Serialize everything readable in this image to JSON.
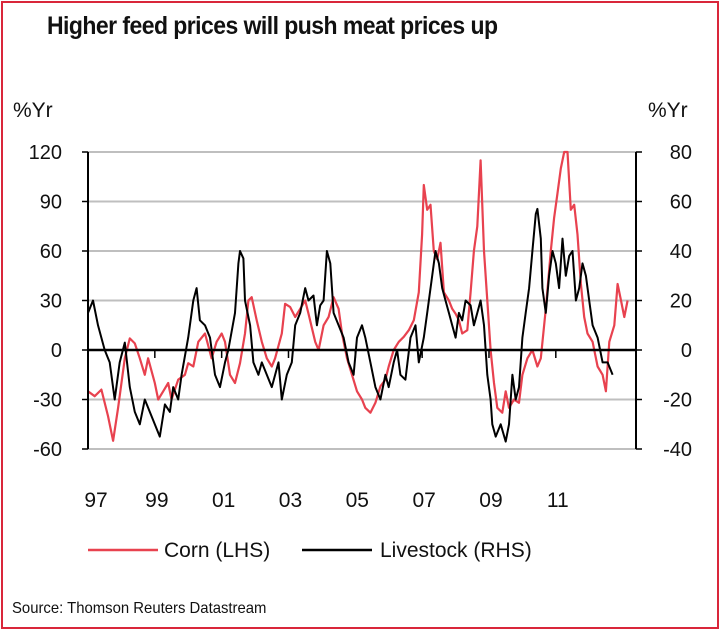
{
  "title": "Higher feed prices will push meat prices up",
  "source": "Source: Thomson Reuters Datastream",
  "colors": {
    "corn": "#e8424f",
    "livestock": "#000000",
    "frame": "#d9263a",
    "grid": "#bfbfbf"
  },
  "chart_data": {
    "type": "line",
    "title": "Higher feed prices will push meat prices up",
    "left_axis": {
      "unit": "%Yr",
      "ylim": [
        -60,
        120
      ],
      "ticks": [
        -60,
        -30,
        0,
        30,
        60,
        90,
        120
      ],
      "tick_labels": [
        "-60",
        "-30",
        "0",
        "30",
        "60",
        "90",
        "120"
      ]
    },
    "right_axis": {
      "unit": "%Yr",
      "ylim": [
        -40,
        80
      ],
      "ticks": [
        -40,
        -20,
        0,
        20,
        40,
        60,
        80
      ],
      "tick_labels": [
        "-40",
        "-20",
        "0",
        "20",
        "40",
        "60",
        "80"
      ]
    },
    "x_axis": {
      "xlim": [
        1997,
        2013.4
      ],
      "ticks": [
        1997,
        1999,
        2001,
        2003,
        2005,
        2007,
        2009,
        2011
      ],
      "tick_labels": [
        "97",
        "99",
        "01",
        "03",
        "05",
        "07",
        "09",
        "11"
      ]
    },
    "grid": true,
    "legend": {
      "placement": "bottom"
    },
    "series": [
      {
        "name": "Corn (LHS)",
        "axis": "left",
        "color": "#e8424f",
        "points": [
          [
            1997.0,
            -25
          ],
          [
            1997.2,
            -28
          ],
          [
            1997.4,
            -24
          ],
          [
            1997.6,
            -40
          ],
          [
            1997.75,
            -55
          ],
          [
            1997.9,
            -35
          ],
          [
            1998.1,
            -5
          ],
          [
            1998.25,
            7
          ],
          [
            1998.4,
            4
          ],
          [
            1998.55,
            -5
          ],
          [
            1998.7,
            -15
          ],
          [
            1998.8,
            -5
          ],
          [
            1999.0,
            -20
          ],
          [
            1999.1,
            -30
          ],
          [
            1999.25,
            -25
          ],
          [
            1999.4,
            -20
          ],
          [
            1999.5,
            -30
          ],
          [
            1999.7,
            -18
          ],
          [
            1999.9,
            -15
          ],
          [
            2000.0,
            -8
          ],
          [
            2000.15,
            -10
          ],
          [
            2000.3,
            5
          ],
          [
            2000.5,
            10
          ],
          [
            2000.7,
            -5
          ],
          [
            2000.85,
            5
          ],
          [
            2001.0,
            10
          ],
          [
            2001.1,
            5
          ],
          [
            2001.25,
            -15
          ],
          [
            2001.4,
            -20
          ],
          [
            2001.55,
            -8
          ],
          [
            2001.7,
            10
          ],
          [
            2001.8,
            30
          ],
          [
            2001.9,
            32
          ],
          [
            2002.05,
            18
          ],
          [
            2002.2,
            5
          ],
          [
            2002.35,
            -5
          ],
          [
            2002.5,
            -10
          ],
          [
            2002.6,
            -5
          ],
          [
            2002.8,
            10
          ],
          [
            2002.9,
            28
          ],
          [
            2003.05,
            26
          ],
          [
            2003.2,
            20
          ],
          [
            2003.35,
            25
          ],
          [
            2003.5,
            30
          ],
          [
            2003.6,
            22
          ],
          [
            2003.8,
            5
          ],
          [
            2003.9,
            0
          ],
          [
            2004.05,
            15
          ],
          [
            2004.2,
            20
          ],
          [
            2004.35,
            32
          ],
          [
            2004.5,
            25
          ],
          [
            2004.6,
            10
          ],
          [
            2004.75,
            -5
          ],
          [
            2004.9,
            -15
          ],
          [
            2005.05,
            -25
          ],
          [
            2005.2,
            -30
          ],
          [
            2005.3,
            -35
          ],
          [
            2005.45,
            -38
          ],
          [
            2005.6,
            -32
          ],
          [
            2005.75,
            -22
          ],
          [
            2005.9,
            -18
          ],
          [
            2006.0,
            -10
          ],
          [
            2006.15,
            0
          ],
          [
            2006.3,
            5
          ],
          [
            2006.45,
            8
          ],
          [
            2006.6,
            12
          ],
          [
            2006.75,
            18
          ],
          [
            2006.9,
            35
          ],
          [
            2007.0,
            70
          ],
          [
            2007.05,
            100
          ],
          [
            2007.15,
            85
          ],
          [
            2007.25,
            88
          ],
          [
            2007.35,
            60
          ],
          [
            2007.45,
            55
          ],
          [
            2007.55,
            65
          ],
          [
            2007.65,
            35
          ],
          [
            2007.8,
            30
          ],
          [
            2007.9,
            25
          ],
          [
            2008.0,
            22
          ],
          [
            2008.1,
            18
          ],
          [
            2008.2,
            10
          ],
          [
            2008.35,
            12
          ],
          [
            2008.45,
            35
          ],
          [
            2008.55,
            60
          ],
          [
            2008.65,
            75
          ],
          [
            2008.75,
            115
          ],
          [
            2008.85,
            60
          ],
          [
            2008.95,
            30
          ],
          [
            2009.05,
            0
          ],
          [
            2009.15,
            -20
          ],
          [
            2009.25,
            -35
          ],
          [
            2009.4,
            -38
          ],
          [
            2009.5,
            -25
          ],
          [
            2009.6,
            -35
          ],
          [
            2009.75,
            -30
          ],
          [
            2009.9,
            -32
          ],
          [
            2010.0,
            -15
          ],
          [
            2010.15,
            -5
          ],
          [
            2010.3,
            0
          ],
          [
            2010.45,
            -10
          ],
          [
            2010.55,
            -5
          ],
          [
            2010.7,
            25
          ],
          [
            2010.85,
            60
          ],
          [
            2010.95,
            80
          ],
          [
            2011.05,
            95
          ],
          [
            2011.15,
            110
          ],
          [
            2011.25,
            123
          ],
          [
            2011.35,
            120
          ],
          [
            2011.45,
            85
          ],
          [
            2011.55,
            88
          ],
          [
            2011.65,
            70
          ],
          [
            2011.75,
            40
          ],
          [
            2011.85,
            20
          ],
          [
            2011.95,
            10
          ],
          [
            2012.1,
            5
          ],
          [
            2012.25,
            -10
          ],
          [
            2012.4,
            -15
          ],
          [
            2012.5,
            -25
          ],
          [
            2012.6,
            5
          ],
          [
            2012.75,
            15
          ],
          [
            2012.85,
            40
          ],
          [
            2012.95,
            30
          ],
          [
            2013.05,
            20
          ],
          [
            2013.15,
            30
          ]
        ]
      },
      {
        "name": "Livestock (RHS)",
        "axis": "right",
        "color": "#000000",
        "points": [
          [
            1997.0,
            15
          ],
          [
            1997.15,
            20
          ],
          [
            1997.3,
            10
          ],
          [
            1997.5,
            0
          ],
          [
            1997.65,
            -5
          ],
          [
            1997.8,
            -20
          ],
          [
            1997.95,
            -5
          ],
          [
            1998.1,
            3
          ],
          [
            1998.25,
            -15
          ],
          [
            1998.4,
            -25
          ],
          [
            1998.55,
            -30
          ],
          [
            1998.7,
            -20
          ],
          [
            1998.85,
            -25
          ],
          [
            1999.0,
            -30
          ],
          [
            1999.15,
            -35
          ],
          [
            1999.3,
            -22
          ],
          [
            1999.45,
            -25
          ],
          [
            1999.55,
            -15
          ],
          [
            1999.7,
            -20
          ],
          [
            1999.8,
            -10
          ],
          [
            2000.0,
            5
          ],
          [
            2000.15,
            20
          ],
          [
            2000.25,
            25
          ],
          [
            2000.35,
            12
          ],
          [
            2000.5,
            10
          ],
          [
            2000.65,
            5
          ],
          [
            2000.8,
            -10
          ],
          [
            2000.95,
            -15
          ],
          [
            2001.1,
            -5
          ],
          [
            2001.2,
            0
          ],
          [
            2001.4,
            15
          ],
          [
            2001.5,
            35
          ],
          [
            2001.55,
            40
          ],
          [
            2001.65,
            37
          ],
          [
            2001.7,
            20
          ],
          [
            2001.85,
            10
          ],
          [
            2001.95,
            -5
          ],
          [
            2002.1,
            -10
          ],
          [
            2002.2,
            -5
          ],
          [
            2002.35,
            -10
          ],
          [
            2002.5,
            -15
          ],
          [
            2002.7,
            -5
          ],
          [
            2002.8,
            -20
          ],
          [
            2002.95,
            -10
          ],
          [
            2003.1,
            -5
          ],
          [
            2003.2,
            10
          ],
          [
            2003.35,
            15
          ],
          [
            2003.5,
            25
          ],
          [
            2003.6,
            20
          ],
          [
            2003.75,
            22
          ],
          [
            2003.85,
            10
          ],
          [
            2003.95,
            18
          ],
          [
            2004.05,
            20
          ],
          [
            2004.15,
            40
          ],
          [
            2004.25,
            35
          ],
          [
            2004.35,
            15
          ],
          [
            2004.5,
            10
          ],
          [
            2004.65,
            5
          ],
          [
            2004.8,
            -5
          ],
          [
            2004.95,
            -10
          ],
          [
            2005.05,
            5
          ],
          [
            2005.2,
            10
          ],
          [
            2005.3,
            5
          ],
          [
            2005.45,
            -5
          ],
          [
            2005.6,
            -15
          ],
          [
            2005.75,
            -20
          ],
          [
            2005.9,
            -10
          ],
          [
            2006.0,
            -15
          ],
          [
            2006.15,
            -5
          ],
          [
            2006.25,
            0
          ],
          [
            2006.35,
            -10
          ],
          [
            2006.5,
            -12
          ],
          [
            2006.65,
            5
          ],
          [
            2006.8,
            10
          ],
          [
            2006.9,
            -5
          ],
          [
            2007.05,
            5
          ],
          [
            2007.15,
            15
          ],
          [
            2007.3,
            30
          ],
          [
            2007.4,
            40
          ],
          [
            2007.5,
            35
          ],
          [
            2007.6,
            25
          ],
          [
            2007.7,
            20
          ],
          [
            2007.8,
            15
          ],
          [
            2007.9,
            10
          ],
          [
            2008.0,
            5
          ],
          [
            2008.1,
            15
          ],
          [
            2008.2,
            12
          ],
          [
            2008.3,
            20
          ],
          [
            2008.45,
            18
          ],
          [
            2008.55,
            10
          ],
          [
            2008.65,
            15
          ],
          [
            2008.75,
            20
          ],
          [
            2008.85,
            10
          ],
          [
            2008.95,
            -10
          ],
          [
            2009.05,
            -20
          ],
          [
            2009.1,
            -30
          ],
          [
            2009.2,
            -35
          ],
          [
            2009.35,
            -30
          ],
          [
            2009.5,
            -37
          ],
          [
            2009.6,
            -30
          ],
          [
            2009.7,
            -10
          ],
          [
            2009.8,
            -20
          ],
          [
            2009.9,
            -15
          ],
          [
            2010.0,
            5
          ],
          [
            2010.1,
            15
          ],
          [
            2010.2,
            25
          ],
          [
            2010.3,
            40
          ],
          [
            2010.4,
            55
          ],
          [
            2010.45,
            57
          ],
          [
            2010.55,
            45
          ],
          [
            2010.6,
            25
          ],
          [
            2010.7,
            15
          ],
          [
            2010.8,
            30
          ],
          [
            2010.9,
            40
          ],
          [
            2011.0,
            35
          ],
          [
            2011.1,
            25
          ],
          [
            2011.2,
            45
          ],
          [
            2011.3,
            30
          ],
          [
            2011.4,
            38
          ],
          [
            2011.5,
            40
          ],
          [
            2011.6,
            20
          ],
          [
            2011.7,
            25
          ],
          [
            2011.8,
            35
          ],
          [
            2011.9,
            30
          ],
          [
            2012.0,
            20
          ],
          [
            2012.1,
            10
          ],
          [
            2012.25,
            5
          ],
          [
            2012.4,
            -5
          ],
          [
            2012.55,
            -5
          ],
          [
            2012.7,
            -10
          ]
        ]
      }
    ]
  }
}
